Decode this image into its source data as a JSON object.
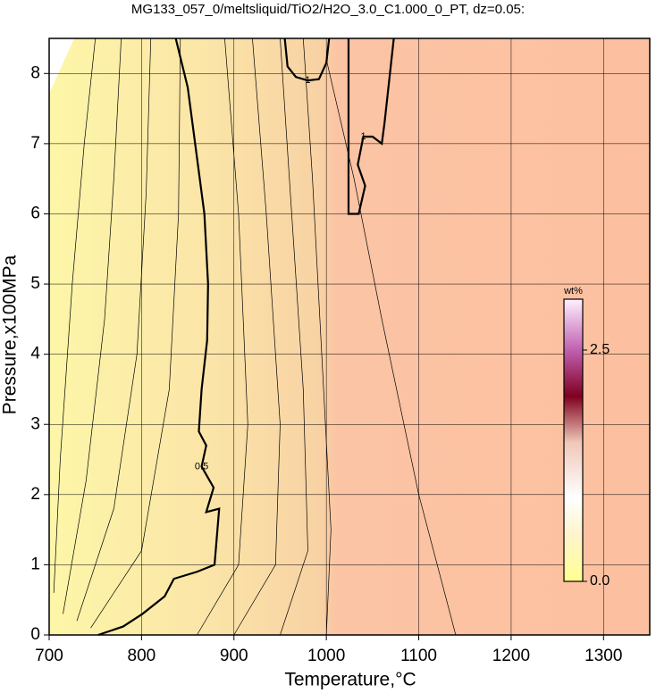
{
  "chart_data": {
    "type": "contour",
    "title": "MG133_057_0/meltsliquid/TiO2/H2O_3.0_C1.000_0_PT, dz=0.05:",
    "xlabel": "Temperature,°C",
    "ylabel": "Pressure,x100MPa",
    "xlim": [
      700,
      1350
    ],
    "ylim": [
      0,
      8.5
    ],
    "xticks": [
      700,
      800,
      900,
      1000,
      1100,
      1200,
      1300
    ],
    "yticks": [
      0,
      1,
      2,
      3,
      4,
      5,
      6,
      7,
      8
    ],
    "grid": true,
    "contours": [
      {
        "level": 0.5,
        "labeled": true,
        "x": [
          753,
          780,
          801,
          825,
          835,
          860,
          879,
          884,
          870,
          878,
          865,
          870,
          862,
          865,
          871,
          872,
          868,
          858,
          850,
          837
        ],
        "y": [
          0,
          0.12,
          0.3,
          0.55,
          0.8,
          0.9,
          1.0,
          1.8,
          1.75,
          2.1,
          2.4,
          2.7,
          2.9,
          3.5,
          4.2,
          5.0,
          6.0,
          7.0,
          7.8,
          8.5
        ]
      },
      {
        "level": 1,
        "labeled": true,
        "x": [
          1024,
          1024,
          1024,
          1035,
          1042,
          1034,
          1040,
          1050,
          1060,
          1063,
          1068,
          1073
        ],
        "y": [
          8.5,
          7.2,
          6.0,
          6.0,
          6.4,
          6.7,
          7.1,
          7.1,
          7.0,
          7.3,
          7.9,
          8.5
        ]
      },
      {
        "level": 1,
        "labeled": true,
        "x": [
          955,
          958,
          967,
          980,
          992,
          1000,
          1003
        ],
        "y": [
          8.5,
          8.1,
          7.95,
          7.9,
          7.92,
          8.15,
          8.5
        ]
      },
      {
        "level": 0.1,
        "labeled": false,
        "x": [
          705,
          712,
          725,
          738,
          750
        ],
        "y": [
          0.6,
          2.5,
          5.0,
          7.0,
          8.5
        ]
      },
      {
        "level": 0.2,
        "labeled": false,
        "x": [
          715,
          740,
          760,
          770,
          778
        ],
        "y": [
          0.3,
          2.2,
          4.5,
          6.5,
          8.5
        ]
      },
      {
        "level": 0.3,
        "labeled": false,
        "x": [
          730,
          770,
          795,
          805,
          810
        ],
        "y": [
          0.2,
          1.8,
          4.0,
          6.3,
          8.5
        ]
      },
      {
        "level": 0.4,
        "labeled": false,
        "x": [
          745,
          800,
          830,
          840,
          842
        ],
        "y": [
          0.1,
          1.2,
          3.5,
          6.0,
          8.5
        ]
      },
      {
        "level": 0.6,
        "labeled": false,
        "x": [
          860,
          905,
          915,
          905,
          890
        ],
        "y": [
          0.0,
          1.0,
          3.0,
          6.0,
          8.5
        ]
      },
      {
        "level": 0.7,
        "labeled": false,
        "x": [
          900,
          945,
          950,
          935,
          920
        ],
        "y": [
          0.0,
          1.0,
          3.0,
          6.0,
          8.5
        ]
      },
      {
        "level": 0.8,
        "labeled": false,
        "x": [
          950,
          980,
          975,
          960,
          950
        ],
        "y": [
          0.0,
          1.2,
          3.5,
          6.5,
          8.5
        ]
      },
      {
        "level": 0.9,
        "labeled": false,
        "x": [
          1000,
          1005,
          995,
          985,
          975
        ],
        "y": [
          0.0,
          1.5,
          4.0,
          6.5,
          8.5
        ]
      },
      {
        "level": 0.95,
        "labeled": false,
        "x": [
          1140,
          1100,
          1060,
          1030,
          1000
        ],
        "y": [
          0.0,
          2.0,
          4.5,
          6.5,
          8.2
        ]
      }
    ],
    "colorbar": {
      "label": "wt%",
      "lim": [
        0,
        3.05
      ],
      "ticks": [
        {
          "value": 0,
          "label": "0.0"
        },
        {
          "value": 2.5,
          "label": "2.5"
        }
      ],
      "stops": [
        {
          "value": 0,
          "color": "#ffff90"
        },
        {
          "value": 0.5,
          "color": "#fff4cc"
        },
        {
          "value": 0.9,
          "color": "#ffffff"
        },
        {
          "value": 1.5,
          "color": "#f0c8b8"
        },
        {
          "value": 2.0,
          "color": "#800020"
        },
        {
          "value": 2.5,
          "color": "#c060b0"
        },
        {
          "value": 3.05,
          "color": "#fff0ff"
        }
      ]
    }
  }
}
